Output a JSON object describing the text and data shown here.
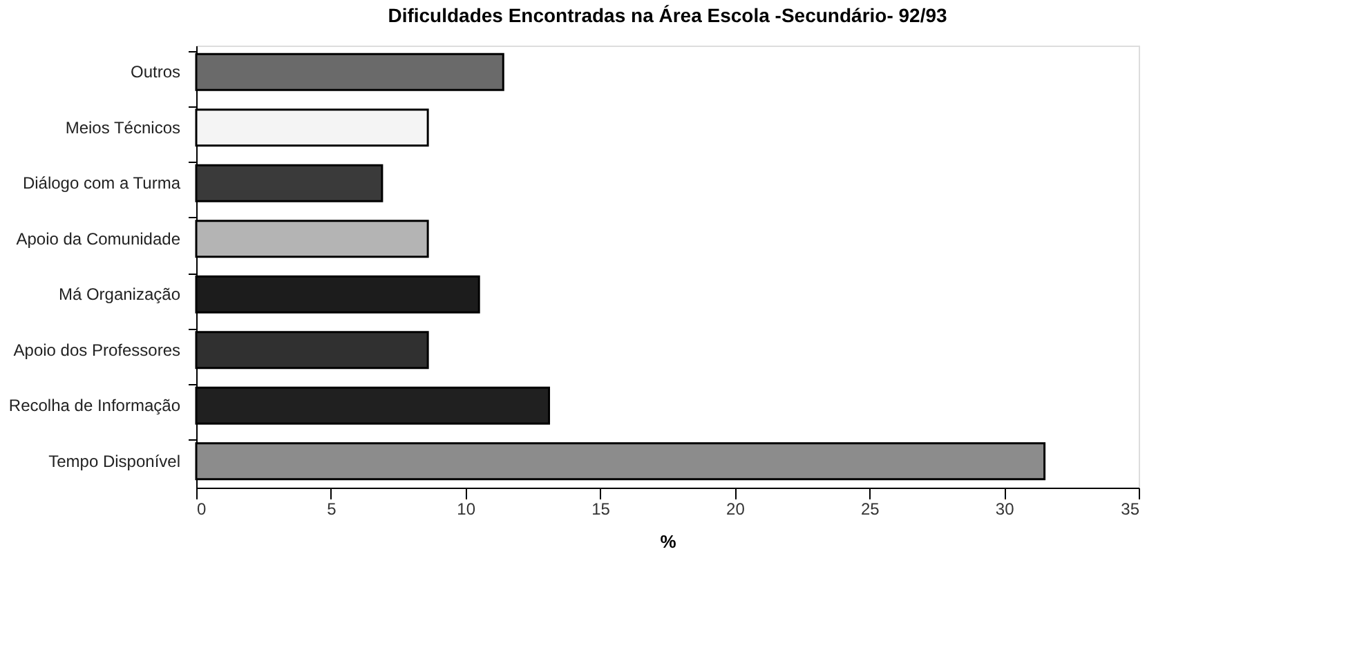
{
  "chart_data": {
    "type": "bar",
    "orientation": "horizontal",
    "title": "Dificuldades Encontradas na Área Escola -Secundário- 92/93",
    "xlabel": "%",
    "categories": [
      "Outros",
      "Meios Técnicos",
      "Diálogo com a Turma",
      "Apoio da Comunidade",
      "Má Organização",
      "Apoio dos Professores",
      "Recolha de Informação",
      "Tempo Disponível"
    ],
    "values": [
      11.4,
      8.6,
      6.9,
      8.6,
      10.5,
      8.6,
      13.1,
      31.5
    ],
    "colors": [
      "#6a6a6a",
      "#f4f4f4",
      "#3a3a3a",
      "#b4b4b4",
      "#1c1c1c",
      "#303030",
      "#202020",
      "#8c8c8c"
    ],
    "xlim": [
      0,
      35
    ],
    "xticks": [
      0,
      5,
      10,
      15,
      20,
      25,
      30,
      35
    ],
    "grid": false,
    "legend": false
  }
}
